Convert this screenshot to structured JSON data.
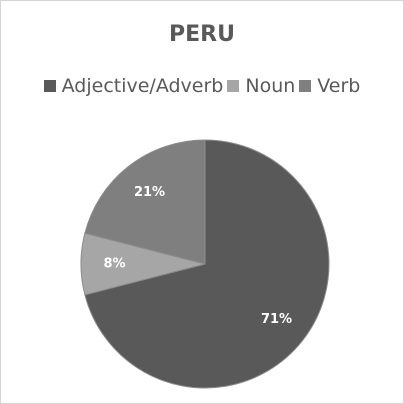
{
  "chart_data": {
    "type": "pie",
    "title": "PERU",
    "legend_position": "top",
    "categories": [
      "Adjective/Adverb",
      "Noun",
      "Verb"
    ],
    "values": [
      71,
      8,
      21
    ],
    "data_labels": [
      "71%",
      "8%",
      "21%"
    ],
    "colors": [
      "#595959",
      "#a6a6a6",
      "#7f7f7f"
    ]
  }
}
